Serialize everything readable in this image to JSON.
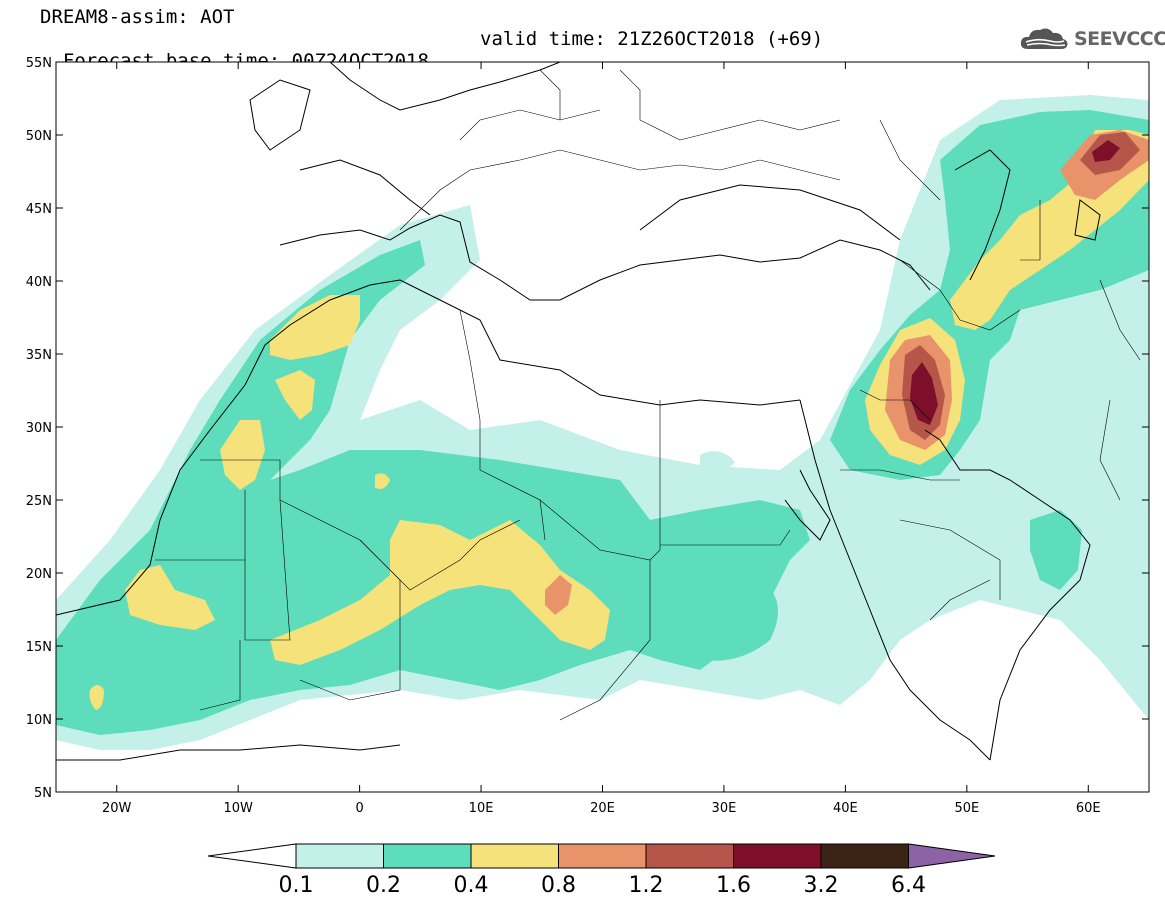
{
  "header": {
    "line1": "DREAM8-assim: AOT",
    "line2_base": "Forecast base time: 00Z24OCT2018",
    "line2_valid": "valid time: 21Z26OCT2018 (+69)"
  },
  "logo": {
    "text": "SEEVCCC",
    "icon": "cloud-icon"
  },
  "map_view": {
    "lon_min": -25,
    "lon_max": 65,
    "lat_min": 5,
    "lat_max": 55
  },
  "axes": {
    "lat_labels": [
      "55N",
      "50N",
      "45N",
      "40N",
      "35N",
      "30N",
      "25N",
      "20N",
      "15N",
      "10N",
      "5N"
    ],
    "lat_values": [
      55,
      50,
      45,
      40,
      35,
      30,
      25,
      20,
      15,
      10,
      5
    ],
    "lon_labels": [
      "20W",
      "10W",
      "0",
      "10E",
      "20E",
      "30E",
      "40E",
      "50E",
      "60E"
    ],
    "lon_values": [
      -20,
      -10,
      0,
      10,
      20,
      30,
      40,
      50,
      60
    ]
  },
  "colorbar": {
    "labels": [
      "0.1",
      "0.2",
      "0.4",
      "0.8",
      "1.2",
      "1.6",
      "3.2",
      "6.4"
    ],
    "colors": [
      "#c3f0e8",
      "#5dddbb",
      "#f5e27a",
      "#e8936a",
      "#b6554a",
      "#7d0f2a",
      "#3b2316"
    ],
    "under_color": "#ffffff",
    "over_color": "#8c64a6"
  }
}
